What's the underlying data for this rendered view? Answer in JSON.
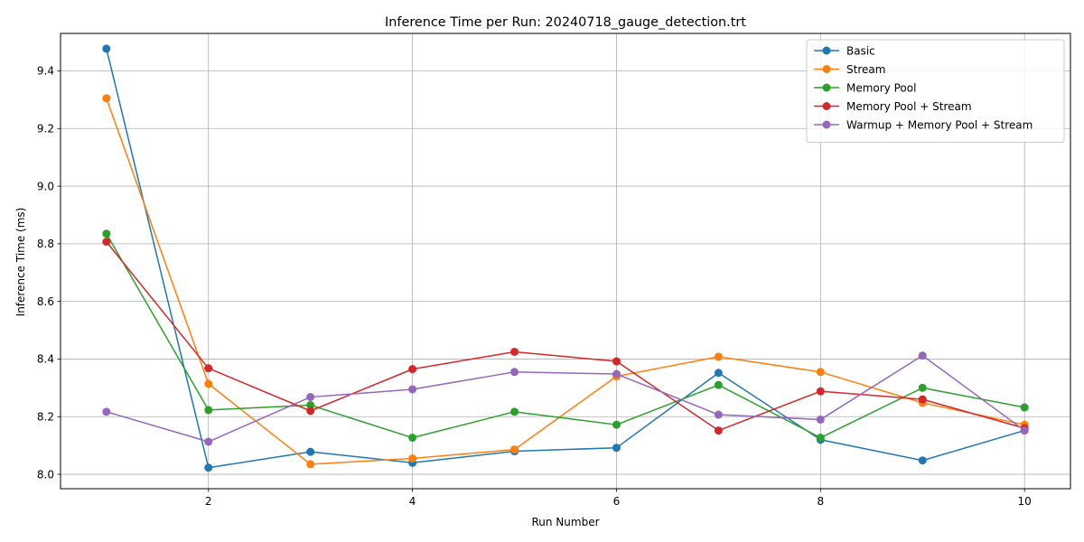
{
  "chart_data": {
    "type": "line",
    "title": "Inference Time per Run: 20240718_gauge_detection.trt",
    "xlabel": "Run Number",
    "ylabel": "Inference Time (ms)",
    "x": [
      1,
      2,
      3,
      4,
      5,
      6,
      7,
      8,
      9,
      10
    ],
    "xlim": [
      0.55,
      10.45
    ],
    "ylim": [
      7.95,
      9.53
    ],
    "xticks": [
      2,
      4,
      6,
      8,
      10
    ],
    "xtick_labels": [
      "2",
      "4",
      "6",
      "8",
      "10"
    ],
    "yticks": [
      8.0,
      8.2,
      8.4,
      8.6,
      8.8,
      9.0,
      9.2,
      9.4
    ],
    "ytick_labels": [
      "8.0",
      "8.2",
      "8.4",
      "8.6",
      "8.8",
      "9.0",
      "9.2",
      "9.4"
    ],
    "grid": true,
    "legend_position": "top-right",
    "series": [
      {
        "name": "Basic",
        "color": "#1f77b4",
        "marker": "circle",
        "values": [
          9.477,
          8.023,
          8.078,
          8.04,
          8.08,
          8.092,
          8.352,
          8.12,
          8.048,
          8.152
        ]
      },
      {
        "name": "Stream",
        "color": "#ff7f0e",
        "marker": "circle",
        "values": [
          9.305,
          8.314,
          8.035,
          8.055,
          8.086,
          8.34,
          8.408,
          8.355,
          8.248,
          8.172
        ]
      },
      {
        "name": "Memory Pool",
        "color": "#2ca02c",
        "marker": "circle",
        "values": [
          8.835,
          8.223,
          8.24,
          8.127,
          8.217,
          8.172,
          8.31,
          8.127,
          8.3,
          8.232
        ]
      },
      {
        "name": "Memory Pool + Stream",
        "color": "#d62728",
        "marker": "circle",
        "values": [
          8.807,
          8.368,
          8.22,
          8.365,
          8.425,
          8.392,
          8.152,
          8.288,
          8.26,
          8.16
        ]
      },
      {
        "name": "Warmup + Memory Pool + Stream",
        "color": "#9467bd",
        "marker": "circle",
        "values": [
          8.217,
          8.113,
          8.268,
          8.295,
          8.355,
          8.348,
          8.207,
          8.19,
          8.412,
          8.152
        ]
      }
    ]
  }
}
